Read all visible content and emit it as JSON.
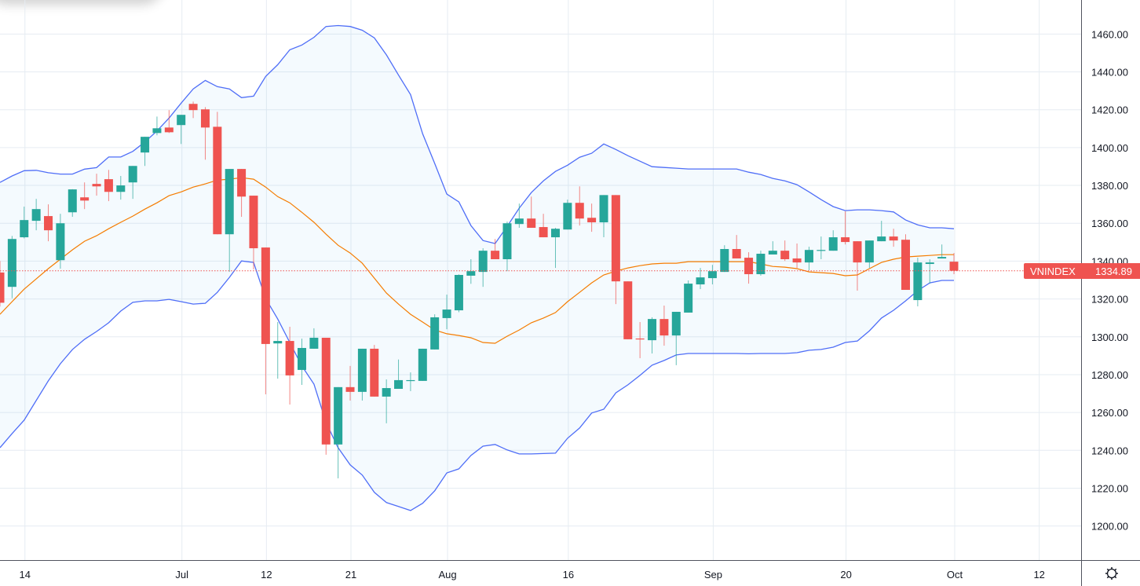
{
  "chart_data": {
    "type": "candlestick",
    "symbol": "VNINDEX",
    "last_price": "1334.89",
    "ylim": [
      1182,
      1478
    ],
    "y_ticks": [
      "1200.00",
      "1220.00",
      "1240.00",
      "1260.00",
      "1280.00",
      "1300.00",
      "1320.00",
      "1340.00",
      "1360.00",
      "1380.00",
      "1400.00",
      "1420.00",
      "1440.00",
      "1460.00"
    ],
    "x_ticks": [
      {
        "label": "14",
        "date": "Jun 14"
      },
      {
        "label": "Jul",
        "date": "Jul 1"
      },
      {
        "label": "12",
        "date": "Jul 12"
      },
      {
        "label": "21",
        "date": "Jul 21"
      },
      {
        "label": "Aug",
        "date": "Aug 2"
      },
      {
        "label": "16",
        "date": "Aug 16"
      },
      {
        "label": "Sep",
        "date": "Sep 1"
      },
      {
        "label": "20",
        "date": "Sep 20"
      },
      {
        "label": "Oct",
        "date": "Oct 1"
      },
      {
        "label": "12",
        "date": "Oct 12"
      }
    ],
    "grid": true,
    "colors": {
      "up": "#26a69a",
      "down": "#ef5350",
      "band": "#4f6ef7",
      "basis": "#f57c00",
      "band_fill": "#2196f3",
      "last_price": "#ef5350"
    },
    "candles_columns": [
      "date",
      "open",
      "high",
      "low",
      "close"
    ],
    "candles": [
      [
        "Jun 10",
        1334,
        1340,
        1316,
        1318
      ],
      [
        "Jun 11",
        1326.4,
        1353.3,
        1320.4,
        1351.7
      ],
      [
        "Jun 14",
        1352.6,
        1368.8,
        1352,
        1361.7
      ],
      [
        "Jun 15",
        1361.3,
        1372.9,
        1356.3,
        1367.5
      ],
      [
        "Jun 16",
        1363.8,
        1370,
        1350.5,
        1356.3
      ],
      [
        "Jun 17",
        1340.5,
        1365,
        1336,
        1360
      ],
      [
        "Jun 18",
        1365.8,
        1378,
        1363.4,
        1377.9
      ],
      [
        "Jun 21",
        1373.7,
        1381.6,
        1367.5,
        1372
      ],
      [
        "Jun 22",
        1380.8,
        1386.2,
        1374.6,
        1379.5
      ],
      [
        "Jun 23",
        1383.3,
        1388.2,
        1371.7,
        1376.6
      ],
      [
        "Jun 24",
        1376.6,
        1385,
        1372.5,
        1380
      ],
      [
        "Jun 25",
        1381.6,
        1390.3,
        1372.9,
        1390.3
      ],
      [
        "Jun 28",
        1397.4,
        1405.7,
        1390.3,
        1405.7
      ],
      [
        "Jun 29",
        1407.7,
        1416.4,
        1406.5,
        1410.2
      ],
      [
        "Jun 30",
        1410.6,
        1419.8,
        1407.7,
        1408.1
      ],
      [
        "Jul 1",
        1411.9,
        1417.3,
        1401.9,
        1417.3
      ],
      [
        "Jul 2",
        1423.1,
        1424.3,
        1415.6,
        1419.8
      ],
      [
        "Jul 5",
        1420.2,
        1421.4,
        1393.6,
        1410.6
      ],
      [
        "Jul 6",
        1411,
        1418.9,
        1354.2,
        1354.2
      ],
      [
        "Jul 7",
        1354.2,
        1388.7,
        1334.3,
        1388.7
      ],
      [
        "Jul 8",
        1388.7,
        1388.7,
        1363.4,
        1374.1
      ],
      [
        "Jul 9",
        1374.6,
        1374.6,
        1335.6,
        1346.8
      ],
      [
        "Jul 12",
        1347.2,
        1347.2,
        1269.6,
        1296.2
      ],
      [
        "Jul 13",
        1296.5,
        1307.8,
        1277.9,
        1297.8
      ],
      [
        "Jul 14",
        1297.8,
        1305.3,
        1264.2,
        1279.6
      ],
      [
        "Jul 15",
        1282.5,
        1299,
        1274.6,
        1294.1
      ],
      [
        "Jul 16",
        1293.7,
        1304.5,
        1293.7,
        1299.5
      ],
      [
        "Jul 19",
        1299.5,
        1299.5,
        1237.7,
        1243.1
      ],
      [
        "Jul 20",
        1243.1,
        1273.4,
        1225.2,
        1273.4
      ],
      [
        "Jul 21",
        1273.4,
        1284.6,
        1266.3,
        1270.9
      ],
      [
        "Jul 22",
        1270.9,
        1293.7,
        1266.3,
        1293.7
      ],
      [
        "Jul 23",
        1293.7,
        1295.7,
        1268.4,
        1268.4
      ],
      [
        "Jul 26",
        1268.4,
        1277.5,
        1254.3,
        1272.9
      ],
      [
        "Jul 27",
        1272.5,
        1288,
        1272.5,
        1277.1
      ],
      [
        "Jul 28",
        1276.7,
        1281.2,
        1271.3,
        1277.1
      ],
      [
        "Jul 29",
        1276.7,
        1293.7,
        1276.7,
        1293.7
      ],
      [
        "Jul 30",
        1293.3,
        1311.9,
        1293.3,
        1310.3
      ],
      [
        "Aug 2",
        1309.9,
        1322.3,
        1304,
        1314.4
      ],
      [
        "Aug 3",
        1314,
        1333,
        1313,
        1332.7
      ],
      [
        "Aug 4",
        1332.3,
        1341,
        1328,
        1334.7
      ],
      [
        "Aug 5",
        1334.3,
        1346.8,
        1326.4,
        1345.5
      ],
      [
        "Aug 6",
        1345.5,
        1351.7,
        1341,
        1341
      ],
      [
        "Aug 9",
        1341,
        1360.9,
        1334.7,
        1360
      ],
      [
        "Aug 10",
        1359.6,
        1370.4,
        1357.6,
        1362.5
      ],
      [
        "Aug 11",
        1362.5,
        1374.1,
        1357.6,
        1357.6
      ],
      [
        "Aug 12",
        1358,
        1365,
        1352.6,
        1352.6
      ],
      [
        "Aug 13",
        1352.6,
        1357.6,
        1336.4,
        1357.1
      ],
      [
        "Aug 16",
        1356.7,
        1372.5,
        1356.7,
        1370.8
      ],
      [
        "Aug 17",
        1370.8,
        1379.5,
        1358.8,
        1362.5
      ],
      [
        "Aug 18",
        1362.9,
        1370.4,
        1355.5,
        1360.5
      ],
      [
        "Aug 19",
        1360.5,
        1374.9,
        1352.6,
        1374.9
      ],
      [
        "Aug 20",
        1374.9,
        1374.9,
        1317.3,
        1329.3
      ],
      [
        "Aug 23",
        1329.3,
        1329.3,
        1298.7,
        1298.7
      ],
      [
        "Aug 24",
        1299.1,
        1307.8,
        1288.7,
        1298.7
      ],
      [
        "Aug 25",
        1298.2,
        1310.3,
        1291.2,
        1309.4
      ],
      [
        "Aug 26",
        1309.4,
        1316.5,
        1295.3,
        1300.7
      ],
      [
        "Aug 27",
        1300.7,
        1313.2,
        1285,
        1313.2
      ],
      [
        "Aug 30",
        1312.8,
        1329.8,
        1312.8,
        1328.1
      ],
      [
        "Aug 31",
        1327.7,
        1336.4,
        1325.2,
        1331.4
      ],
      [
        "Sep 1",
        1331,
        1338,
        1327.7,
        1334.7
      ],
      [
        "Sep 6",
        1334.3,
        1348.4,
        1334.3,
        1346.4
      ],
      [
        "Sep 7",
        1346.4,
        1353.8,
        1341.4,
        1341.4
      ],
      [
        "Sep 8",
        1341.8,
        1344.7,
        1328.1,
        1333.1
      ],
      [
        "Sep 9",
        1333.1,
        1345.5,
        1332.3,
        1343.9
      ],
      [
        "Sep 10",
        1343.5,
        1350.5,
        1343.5,
        1345.5
      ],
      [
        "Sep 13",
        1345.5,
        1350.9,
        1340.1,
        1341
      ],
      [
        "Sep 14",
        1341.4,
        1349.3,
        1336.4,
        1339.3
      ],
      [
        "Sep 15",
        1339.3,
        1347.6,
        1335.2,
        1345.9
      ],
      [
        "Sep 16",
        1345.5,
        1353,
        1341,
        1345.9
      ],
      [
        "Sep 17",
        1345.5,
        1356.3,
        1345.5,
        1352.6
      ],
      [
        "Sep 20",
        1352.6,
        1366.3,
        1348.8,
        1350.1
      ],
      [
        "Sep 21",
        1350.5,
        1350.5,
        1324.4,
        1339.3
      ],
      [
        "Sep 22",
        1339.3,
        1350.9,
        1336.4,
        1350.9
      ],
      [
        "Sep 23",
        1350.5,
        1361.3,
        1350.5,
        1353
      ],
      [
        "Sep 24",
        1353,
        1357.1,
        1347.6,
        1350.9
      ],
      [
        "Sep 27",
        1351.3,
        1354.2,
        1324.8,
        1324.8
      ],
      [
        "Sep 28",
        1319.4,
        1341.8,
        1316.1,
        1339.3
      ],
      [
        "Sep 29",
        1338.5,
        1341,
        1328.1,
        1339.3
      ],
      [
        "Sep 30",
        1341.4,
        1348.8,
        1341.4,
        1342.2
      ],
      [
        "Oct 1",
        1339.7,
        1344.3,
        1333.1,
        1334.89
      ]
    ],
    "bollinger": {
      "upper": [
        1381.6,
        1385,
        1387.8,
        1388,
        1386.7,
        1386,
        1386,
        1388.6,
        1389.4,
        1395,
        1395,
        1398,
        1403,
        1408.8,
        1415.6,
        1423.5,
        1431,
        1435.5,
        1432.2,
        1431,
        1426.4,
        1427.2,
        1437.6,
        1443.8,
        1451.7,
        1454.2,
        1458.3,
        1464,
        1464.5,
        1464,
        1462,
        1458,
        1449,
        1438.4,
        1428,
        1407.3,
        1391.6,
        1375.4,
        1371.3,
        1358.8,
        1350.9,
        1349.3,
        1358.4,
        1368,
        1376.2,
        1382.4,
        1387.4,
        1390.7,
        1394.9,
        1397,
        1401.9,
        1399,
        1395.7,
        1392.8,
        1389.9,
        1389.5,
        1389.1,
        1388.7,
        1388.7,
        1388.7,
        1388.7,
        1388.7,
        1387,
        1385.8,
        1383.7,
        1382.4,
        1380.4,
        1376.6,
        1372.5,
        1368.8,
        1366.7,
        1367.1,
        1367.1,
        1366.7,
        1366,
        1361.7,
        1359.2,
        1357.6,
        1357.6,
        1357.1
      ],
      "basis": [
        1311.9,
        1318.6,
        1325.2,
        1330.6,
        1336,
        1341,
        1346,
        1350.5,
        1353.4,
        1357.1,
        1360.5,
        1363.8,
        1367.5,
        1370.8,
        1374.6,
        1376.6,
        1379.1,
        1380.8,
        1382.8,
        1383.3,
        1384.1,
        1383.3,
        1379.1,
        1374.1,
        1370.8,
        1365.8,
        1360.5,
        1354.2,
        1348.4,
        1344.3,
        1338.9,
        1331,
        1323.1,
        1317.3,
        1311.9,
        1307.8,
        1303.6,
        1301.6,
        1300.7,
        1299.5,
        1297,
        1296.6,
        1300.3,
        1303.6,
        1307.4,
        1309.9,
        1312.8,
        1318.6,
        1323.5,
        1328.5,
        1332.7,
        1334.7,
        1336.4,
        1337.6,
        1338.5,
        1338.9,
        1338.9,
        1339.7,
        1339.7,
        1339.7,
        1339.7,
        1339.7,
        1339.7,
        1338.5,
        1337.2,
        1336.8,
        1336,
        1334.3,
        1333.9,
        1333.5,
        1332.3,
        1332.7,
        1336,
        1339.3,
        1341,
        1342.2,
        1342.6,
        1343,
        1343.4,
        1343.4
      ],
      "lower": [
        1241.4,
        1248.9,
        1256,
        1266.3,
        1276.7,
        1285.8,
        1293.3,
        1298.7,
        1302.8,
        1307.4,
        1313.6,
        1318.2,
        1319,
        1319,
        1319.8,
        1318.6,
        1317.3,
        1317.7,
        1323.5,
        1331.4,
        1340.1,
        1339.3,
        1320.2,
        1309.4,
        1297,
        1284.6,
        1275,
        1254.7,
        1241.4,
        1232.3,
        1226.9,
        1217.8,
        1212.4,
        1210.3,
        1208.2,
        1212,
        1218.6,
        1228.1,
        1230.2,
        1237.3,
        1242.2,
        1243.1,
        1240.2,
        1238.1,
        1238.1,
        1238.3,
        1238.5,
        1246.4,
        1251.8,
        1259.7,
        1261.7,
        1270.4,
        1274.6,
        1279.6,
        1285,
        1287.5,
        1290.4,
        1291.2,
        1291.2,
        1291.2,
        1291.2,
        1291.2,
        1291,
        1291.2,
        1291.2,
        1291.2,
        1291.6,
        1292.9,
        1293.3,
        1294.5,
        1297,
        1297.8,
        1303.2,
        1309.9,
        1314,
        1319,
        1324.4,
        1328.5,
        1329.8,
        1329.8
      ]
    }
  },
  "icons": {
    "settings": "gear-icon"
  }
}
